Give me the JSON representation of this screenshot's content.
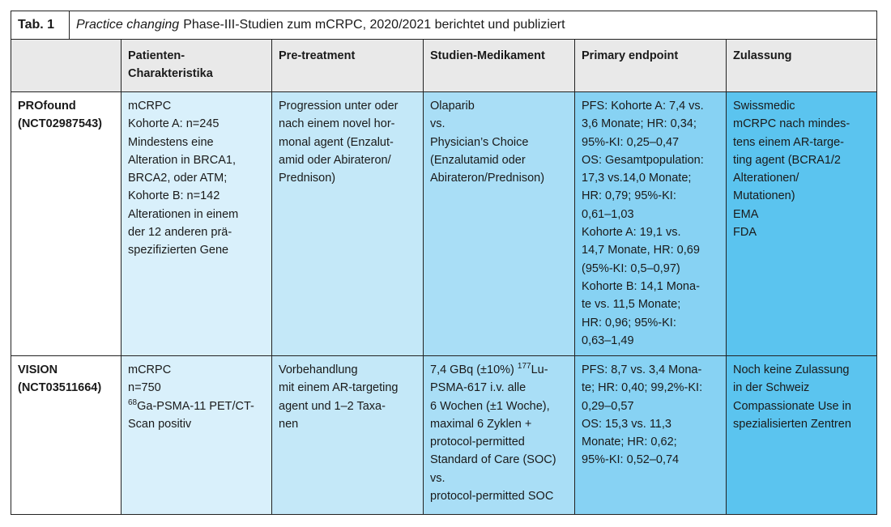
{
  "table": {
    "label": "Tab. 1",
    "title_italic": "Practice changing",
    "title_rest": "Phase-III-Studien zum mCRPC, 2020/2021 berichtet und publiziert",
    "headers": [
      "",
      [
        "Patienten-",
        "Charakteristika"
      ],
      [
        "Pre-treatment"
      ],
      [
        "Studien-Medikament"
      ],
      [
        "Primary endpoint"
      ],
      [
        "Zulassung"
      ]
    ],
    "rows": [
      {
        "name": [
          "PROfound",
          "(NCT02987543)"
        ],
        "patients": [
          "mCRPC",
          "Kohorte A: n=245",
          "Mindestens eine",
          "Alteration in BRCA1,",
          "BRCA2, oder ATM;",
          "Kohorte B: n=142",
          "Alterationen in einem",
          "der 12 anderen prä-",
          "spezifizierten Gene"
        ],
        "pretreatment": [
          "Progression unter oder",
          "nach einem novel hor-",
          "monal agent (Enzalut-",
          "amid oder Abirateron/",
          "Prednison)"
        ],
        "medication": [
          "Olaparib",
          "vs.",
          "Physician’s Choice",
          "(Enzalutamid oder",
          "Abirateron/Prednison)"
        ],
        "endpoint": [
          "PFS: Kohorte A: 7,4 vs.",
          "3,6 Monate; HR: 0,34;",
          "95%-KI: 0,25–0,47",
          "OS: Gesamtpopulation:",
          "17,3 vs.14,0 Monate;",
          "HR: 0,79; 95%-KI:",
          "0,61–1,03",
          "Kohorte A: 19,1 vs.",
          "14,7 Monate, HR: 0,69",
          "(95%-KI: 0,5–0,97)",
          "Kohorte B: 14,1 Mona-",
          "te vs. 11,5 Monate;",
          "HR: 0,96; 95%-KI:",
          "0,63–1,49"
        ],
        "approval": [
          "Swissmedic",
          "mCRPC nach mindes-",
          "tens einem AR-targe-",
          "ting agent (BCRA1/2",
          "Alterationen/",
          "Mutationen)",
          "EMA",
          "FDA"
        ]
      },
      {
        "name": [
          "VISION",
          "(NCT03511664)"
        ],
        "patients": [
          "mCRPC",
          "n=750"
        ],
        "patients_sup": "68",
        "patients_sup_line": "Ga-PSMA-11 PET/CT-",
        "patients_tail": [
          "Scan positiv"
        ],
        "pretreatment": [
          "Vorbehandlung",
          "mit einem AR-targeting",
          "agent und 1–2 Taxa-",
          "nen"
        ],
        "medication_first": "7,4 GBq (±10%) ",
        "medication_sup": "177",
        "medication_first_tail": "Lu-",
        "medication": [
          "PSMA-617 i.v. alle",
          "6 Wochen (±1 Woche),",
          "maximal 6 Zyklen +",
          "protocol-permitted",
          "Standard of Care (SOC)",
          "vs.",
          "protocol-permitted SOC"
        ],
        "endpoint": [
          "PFS: 8,7 vs. 3,4 Mona-",
          "te; HR: 0,40; 99,2%-KI:",
          "0,29–0,57",
          "OS: 15,3 vs. 11,3",
          "Monate; HR: 0,62;",
          "95%-KI: 0,52–0,74"
        ],
        "approval": [
          "Noch keine Zulassung",
          "in der Schweiz",
          "Compassionate Use in",
          "spezialisierten Zentren"
        ]
      }
    ]
  }
}
